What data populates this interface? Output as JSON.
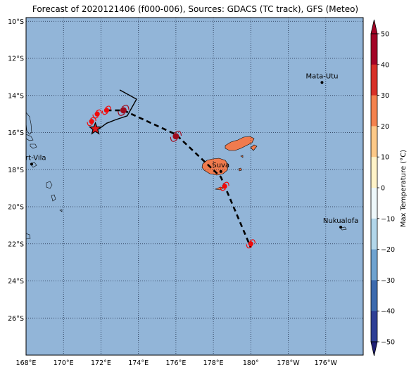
{
  "title": "Forecast of 2020121406 (f000-006), Sources: GDACS (TC track), GFS (Meteo)",
  "colorbar": {
    "label": "Max Temperature (°C)",
    "min": -50,
    "max": 50,
    "step": 10,
    "ticks": [
      "50",
      "40",
      "30",
      "20",
      "10",
      "0",
      "−10",
      "−20",
      "−30",
      "−40",
      "−50"
    ],
    "colors": [
      "#1f1f75",
      "#2e3f96",
      "#3c6aae",
      "#6fa3d0",
      "#b2d6ea",
      "#eef8fb",
      "#fff3c8",
      "#fdc988",
      "#f4824e",
      "#d83027",
      "#a30426"
    ],
    "extend": "both"
  },
  "map": {
    "lon_range": [
      168,
      186
    ],
    "lat_range": [
      -28,
      -9.8
    ],
    "ocean_color": "#92b5d8",
    "land_color": "#f07b4e",
    "grid_lons": [
      168,
      170,
      172,
      174,
      176,
      178,
      180,
      182,
      184
    ],
    "grid_lats": [
      -10,
      -12,
      -14,
      -16,
      -18,
      -20,
      -22,
      -24,
      -26
    ],
    "xtick_labels": [
      "168°E",
      "170°E",
      "172°E",
      "174°E",
      "176°E",
      "178°E",
      "180°",
      "178°W",
      "176°W"
    ],
    "ytick_labels": [
      "10°S",
      "12°S",
      "14°S",
      "16°S",
      "18°S",
      "20°S",
      "22°S",
      "24°S",
      "26°S"
    ]
  },
  "cities": [
    {
      "name": "Mata-Utu",
      "lon": 183.8,
      "lat": -13.3
    },
    {
      "name": "Port-Vila",
      "lon": 168.3,
      "lat": -17.7
    },
    {
      "name": "Suva",
      "lon": 178.4,
      "lat": -18.1
    },
    {
      "name": "Nukualofa",
      "lon": 184.8,
      "lat": -21.1
    }
  ],
  "tc_track": {
    "past_track": [
      [
        173.0,
        -13.7
      ],
      [
        173.9,
        -14.2
      ],
      [
        173.4,
        -15.1
      ],
      [
        172.8,
        -15.3
      ],
      [
        172.3,
        -15.5
      ],
      [
        171.9,
        -15.8
      ]
    ],
    "forecast_track": [
      [
        172.3,
        -14.8
      ],
      [
        173.2,
        -14.8
      ],
      [
        176.0,
        -16.1
      ],
      [
        178.4,
        -18.4
      ],
      [
        180.0,
        -22.2
      ]
    ],
    "current_position": {
      "lon": 171.7,
      "lat": -15.8
    },
    "symbols": [
      {
        "lon": 171.5,
        "lat": -15.4,
        "intensity": "storm"
      },
      {
        "lon": 171.8,
        "lat": -15.0,
        "intensity": "storm"
      },
      {
        "lon": 172.3,
        "lat": -14.8,
        "intensity": "storm"
      },
      {
        "lon": 173.2,
        "lat": -14.8,
        "intensity": "hurricane"
      },
      {
        "lon": 176.0,
        "lat": -16.2,
        "intensity": "hurricane"
      },
      {
        "lon": 178.6,
        "lat": -18.9,
        "intensity": "storm"
      },
      {
        "lon": 180.0,
        "lat": -22.0,
        "intensity": "storm"
      }
    ]
  }
}
